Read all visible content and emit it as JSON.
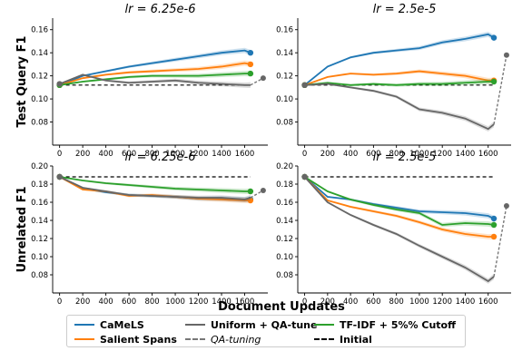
{
  "figure": {
    "xlabel": "Document Updates",
    "ylabel_top": "Test Query F1",
    "ylabel_bottom": "Unrelated F1"
  },
  "legend": {
    "items": [
      {
        "label": "CaMeLS",
        "color": "#1f77b4",
        "style": "solid"
      },
      {
        "label": "Salient Spans",
        "color": "#ff7f0e",
        "style": "solid"
      },
      {
        "label": "Uniform + QA-tune",
        "color": "#666666",
        "style": "solid"
      },
      {
        "label": "QA-tuning",
        "color": "#777777",
        "style": "dashed"
      },
      {
        "label": "TF-IDF + 5%% Cutoff",
        "color": "#2ca02c",
        "style": "solid"
      },
      {
        "label": "Initial",
        "color": "#000000",
        "style": "dashed"
      }
    ]
  },
  "chart_data": [
    {
      "type": "line",
      "title": "lr = 6.25e-6",
      "ylabel": "Test Query F1",
      "x": [
        0,
        200,
        400,
        600,
        800,
        1000,
        1200,
        1400,
        1600,
        1650
      ],
      "xticks": [
        0,
        200,
        400,
        600,
        800,
        1000,
        1200,
        1400,
        1600
      ],
      "xlim": [
        -60,
        1800
      ],
      "ylim": [
        0.06,
        0.17
      ],
      "yticks": [
        0.08,
        0.1,
        0.12,
        0.14,
        0.16
      ],
      "series": [
        {
          "name": "CaMeLS",
          "color": "#1f77b4",
          "values": [
            0.112,
            0.12,
            0.124,
            0.128,
            0.131,
            0.134,
            0.137,
            0.14,
            0.142,
            0.14
          ],
          "end_marker": true
        },
        {
          "name": "Salient Spans",
          "color": "#ff7f0e",
          "values": [
            0.112,
            0.118,
            0.121,
            0.123,
            0.124,
            0.125,
            0.126,
            0.128,
            0.131,
            0.13
          ],
          "end_marker": true
        },
        {
          "name": "TF-IDF + 5%% Cutoff",
          "color": "#2ca02c",
          "values": [
            0.112,
            0.115,
            0.117,
            0.119,
            0.12,
            0.12,
            0.12,
            0.121,
            0.122,
            0.122
          ],
          "end_marker": true
        },
        {
          "name": "Uniform + QA-tune",
          "color": "#666666",
          "values": [
            0.113,
            0.121,
            0.116,
            0.114,
            0.115,
            0.116,
            0.114,
            0.113,
            0.112,
            0.112
          ]
        }
      ],
      "qa_tuning": {
        "x": [
          1650,
          1760
        ],
        "y": [
          0.112,
          0.118
        ]
      },
      "initial": 0.112
    },
    {
      "type": "line",
      "title": "lr = 2.5e-5",
      "ylabel": "",
      "x": [
        0,
        200,
        400,
        600,
        800,
        1000,
        1200,
        1400,
        1600,
        1650
      ],
      "xticks": [
        0,
        200,
        400,
        600,
        800,
        1000,
        1200,
        1400,
        1600
      ],
      "xlim": [
        -60,
        1800
      ],
      "ylim": [
        0.06,
        0.17
      ],
      "yticks": [
        0.08,
        0.1,
        0.12,
        0.14,
        0.16
      ],
      "series": [
        {
          "name": "CaMeLS",
          "color": "#1f77b4",
          "values": [
            0.112,
            0.128,
            0.136,
            0.14,
            0.142,
            0.144,
            0.149,
            0.152,
            0.156,
            0.153
          ],
          "end_marker": true
        },
        {
          "name": "Salient Spans",
          "color": "#ff7f0e",
          "values": [
            0.112,
            0.119,
            0.122,
            0.121,
            0.122,
            0.124,
            0.122,
            0.12,
            0.116,
            0.116
          ],
          "end_marker": true
        },
        {
          "name": "TF-IDF + 5%% Cutoff",
          "color": "#2ca02c",
          "values": [
            0.112,
            0.114,
            0.112,
            0.113,
            0.112,
            0.113,
            0.113,
            0.114,
            0.115,
            0.115
          ],
          "end_marker": true
        },
        {
          "name": "Uniform + QA-tune",
          "color": "#666666",
          "values": [
            0.112,
            0.113,
            0.11,
            0.107,
            0.102,
            0.091,
            0.088,
            0.083,
            0.074,
            0.078
          ]
        }
      ],
      "qa_tuning": {
        "x": [
          1650,
          1760
        ],
        "y": [
          0.078,
          0.138
        ]
      },
      "initial": 0.112
    },
    {
      "type": "line",
      "title": "lr = 6.25e-6",
      "ylabel": "Unrelated F1",
      "x": [
        0,
        200,
        400,
        600,
        800,
        1000,
        1200,
        1400,
        1600,
        1650
      ],
      "xticks": [
        0,
        200,
        400,
        600,
        800,
        1000,
        1200,
        1400,
        1600
      ],
      "xlim": [
        -60,
        1800
      ],
      "ylim": [
        0.06,
        0.2
      ],
      "yticks": [
        0.08,
        0.1,
        0.12,
        0.14,
        0.16,
        0.18,
        0.2
      ],
      "series": [
        {
          "name": "CaMeLS",
          "color": "#1f77b4",
          "values": [
            0.188,
            0.175,
            0.171,
            0.168,
            0.167,
            0.166,
            0.164,
            0.164,
            0.163,
            0.163
          ],
          "end_marker": true
        },
        {
          "name": "Salient Spans",
          "color": "#ff7f0e",
          "values": [
            0.188,
            0.174,
            0.172,
            0.167,
            0.168,
            0.166,
            0.164,
            0.163,
            0.162,
            0.162
          ],
          "end_marker": true
        },
        {
          "name": "TF-IDF + 5%% Cutoff",
          "color": "#2ca02c",
          "values": [
            0.188,
            0.184,
            0.181,
            0.179,
            0.177,
            0.175,
            0.174,
            0.173,
            0.172,
            0.172
          ],
          "end_marker": true
        },
        {
          "name": "Uniform + QA-tune",
          "color": "#666666",
          "values": [
            0.188,
            0.176,
            0.172,
            0.168,
            0.167,
            0.166,
            0.165,
            0.165,
            0.163,
            0.165
          ]
        }
      ],
      "qa_tuning": {
        "x": [
          1650,
          1760
        ],
        "y": [
          0.165,
          0.173
        ]
      },
      "initial": 0.188
    },
    {
      "type": "line",
      "title": "lr = 2.5e-5",
      "ylabel": "",
      "x": [
        0,
        200,
        400,
        600,
        800,
        1000,
        1200,
        1400,
        1600,
        1650
      ],
      "xticks": [
        0,
        200,
        400,
        600,
        800,
        1000,
        1200,
        1400,
        1600
      ],
      "xlim": [
        -60,
        1800
      ],
      "ylim": [
        0.06,
        0.2
      ],
      "yticks": [
        0.08,
        0.1,
        0.12,
        0.14,
        0.16,
        0.18,
        0.2
      ],
      "series": [
        {
          "name": "CaMeLS",
          "color": "#1f77b4",
          "values": [
            0.188,
            0.166,
            0.163,
            0.158,
            0.154,
            0.15,
            0.149,
            0.148,
            0.145,
            0.142
          ],
          "end_marker": true
        },
        {
          "name": "Salient Spans",
          "color": "#ff7f0e",
          "values": [
            0.188,
            0.162,
            0.155,
            0.15,
            0.145,
            0.138,
            0.13,
            0.125,
            0.122,
            0.122
          ],
          "end_marker": true
        },
        {
          "name": "TF-IDF + 5%% Cutoff",
          "color": "#2ca02c",
          "values": [
            0.188,
            0.172,
            0.163,
            0.157,
            0.152,
            0.148,
            0.135,
            0.137,
            0.136,
            0.135
          ],
          "end_marker": true
        },
        {
          "name": "Uniform + QA-tune",
          "color": "#666666",
          "values": [
            0.188,
            0.16,
            0.146,
            0.135,
            0.125,
            0.112,
            0.1,
            0.088,
            0.073,
            0.078
          ]
        }
      ],
      "qa_tuning": {
        "x": [
          1650,
          1760
        ],
        "y": [
          0.078,
          0.156
        ]
      },
      "initial": 0.188
    }
  ]
}
